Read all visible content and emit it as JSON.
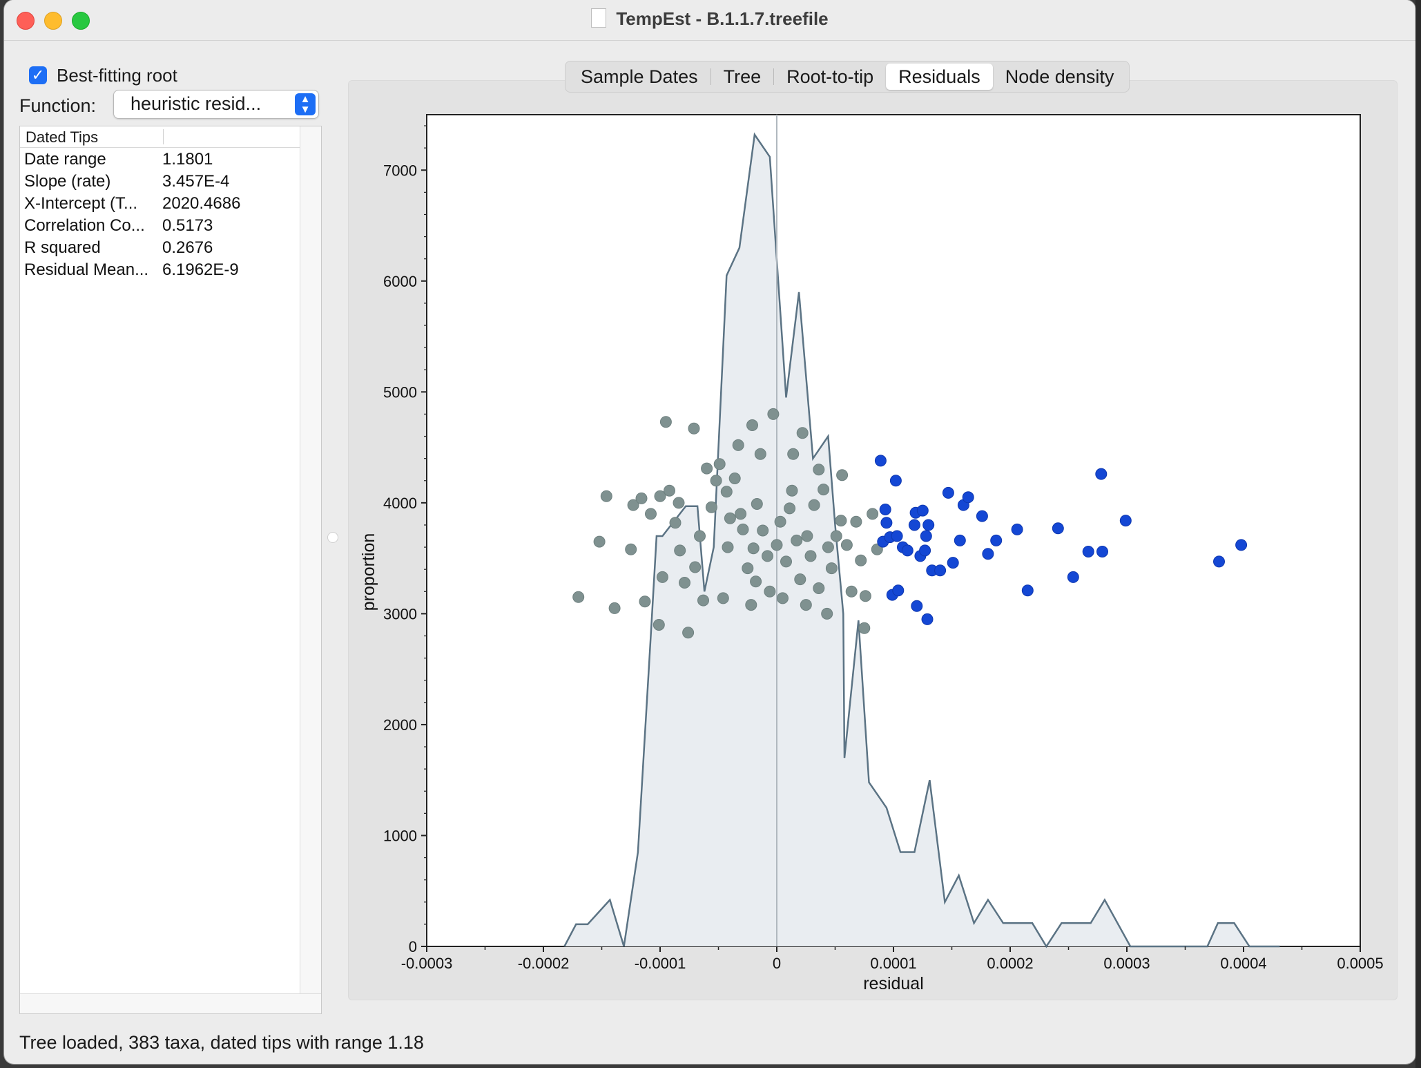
{
  "window": {
    "title": "TempEst - B.1.1.7.treefile"
  },
  "left": {
    "checkbox_label": "Best-fitting root",
    "checkbox_checked": true,
    "function_label": "Function:",
    "function_value": "heuristic resid...",
    "table": {
      "header": "Dated Tips",
      "rows": [
        {
          "key": "Date range",
          "value": "1.1801"
        },
        {
          "key": "Slope (rate)",
          "value": "3.457E-4"
        },
        {
          "key": "X-Intercept (T...",
          "value": "2020.4686"
        },
        {
          "key": "Correlation Co...",
          "value": "0.5173"
        },
        {
          "key": "R squared",
          "value": "0.2676"
        },
        {
          "key": "Residual Mean...",
          "value": "6.1962E-9"
        }
      ]
    }
  },
  "tabs": [
    {
      "label": "Sample Dates",
      "selected": false
    },
    {
      "label": "Tree",
      "selected": false
    },
    {
      "label": "Root-to-tip",
      "selected": false
    },
    {
      "label": "Residuals",
      "selected": true
    },
    {
      "label": "Node density",
      "selected": false
    }
  ],
  "status": "Tree loaded, 383 taxa, dated tips with range 1.18",
  "colors": {
    "accent": "#1d6ef5",
    "histogram_line": "#5b7384",
    "histogram_fill": "#e9edf1",
    "points_grey": "#7f9190",
    "points_blue": "#1447d4"
  },
  "chart_data": {
    "type": "area",
    "xlabel": "residual",
    "ylabel": "proportion",
    "xlim": [
      -0.0003,
      0.0005
    ],
    "ylim": [
      0,
      7500
    ],
    "x_ticks": [
      {
        "value": -0.0003,
        "label": "-0.0003"
      },
      {
        "value": -0.0002,
        "label": "-0.0002"
      },
      {
        "value": -0.0001,
        "label": "-0.0001"
      },
      {
        "value": 0,
        "label": "0"
      },
      {
        "value": 0.0001,
        "label": "0.0001"
      },
      {
        "value": 0.0002,
        "label": "0.0002"
      },
      {
        "value": 0.0003,
        "label": "0.0003"
      },
      {
        "value": 0.0004,
        "label": "0.0004"
      },
      {
        "value": 0.0005,
        "label": "0.0005"
      }
    ],
    "y_ticks": [
      {
        "value": 0,
        "label": "0"
      },
      {
        "value": 1000,
        "label": "1000"
      },
      {
        "value": 2000,
        "label": "2000"
      },
      {
        "value": 3000,
        "label": "3000"
      },
      {
        "value": 4000,
        "label": "4000"
      },
      {
        "value": 5000,
        "label": "5000"
      },
      {
        "value": 6000,
        "label": "6000"
      },
      {
        "value": 7000,
        "label": "7000"
      }
    ],
    "zero_line_x": 0,
    "histogram": [
      [
        -0.000182,
        0
      ],
      [
        -0.000172,
        200
      ],
      [
        -0.000162,
        200
      ],
      [
        -0.000143,
        420
      ],
      [
        -0.000131,
        0
      ],
      [
        -0.000119,
        850
      ],
      [
        -0.000108,
        2800
      ],
      [
        -0.000103,
        3700
      ],
      [
        -9.8e-05,
        3700
      ],
      [
        -7.8e-05,
        3970
      ],
      [
        -6.8e-05,
        3970
      ],
      [
        -6.2e-05,
        3200
      ],
      [
        -5.4e-05,
        3600
      ],
      [
        -4.3e-05,
        6050
      ],
      [
        -3.2e-05,
        6300
      ],
      [
        -1.9e-05,
        7320
      ],
      [
        -6e-06,
        7120
      ],
      [
        8e-06,
        4950
      ],
      [
        1.9e-05,
        5900
      ],
      [
        3.1e-05,
        4400
      ],
      [
        4.4e-05,
        4600
      ],
      [
        5e-05,
        3800
      ],
      [
        5.7e-05,
        3000
      ],
      [
        5.8e-05,
        1700
      ],
      [
        7e-05,
        2940
      ],
      [
        7.9e-05,
        1480
      ],
      [
        9.4e-05,
        1250
      ],
      [
        0.000106,
        850
      ],
      [
        0.000118,
        850
      ],
      [
        0.000131,
        1500
      ],
      [
        0.000144,
        400
      ],
      [
        0.000156,
        640
      ],
      [
        0.000169,
        210
      ],
      [
        0.000181,
        420
      ],
      [
        0.000194,
        210
      ],
      [
        0.000219,
        210
      ],
      [
        0.000231,
        0
      ],
      [
        0.000244,
        210
      ],
      [
        0.000269,
        210
      ],
      [
        0.000281,
        420
      ],
      [
        0.000303,
        0
      ],
      [
        0.000369,
        0
      ],
      [
        0.000378,
        210
      ],
      [
        0.000392,
        210
      ],
      [
        0.000405,
        0
      ],
      [
        0.000431,
        0
      ]
    ],
    "series": [
      {
        "name": "",
        "color": "#7f9190",
        "points": [
          [
            -0.00017,
            3150
          ],
          [
            -0.000152,
            3650
          ],
          [
            -0.000146,
            4060
          ],
          [
            -0.000139,
            3050
          ],
          [
            -0.000125,
            3580
          ],
          [
            -0.000123,
            3980
          ],
          [
            -0.000116,
            4040
          ],
          [
            -0.000108,
            3900
          ],
          [
            -0.0001,
            4060
          ],
          [
            -9.2e-05,
            4110
          ],
          [
            -9.5e-05,
            4730
          ],
          [
            -8.7e-05,
            3820
          ],
          [
            -8.3e-05,
            3570
          ],
          [
            -7.9e-05,
            3280
          ],
          [
            -7.6e-05,
            2830
          ],
          [
            -7e-05,
            3420
          ],
          [
            -6.6e-05,
            3700
          ],
          [
            -5.6e-05,
            3960
          ],
          [
            -5.2e-05,
            4200
          ],
          [
            -4.9e-05,
            4350
          ],
          [
            -4.6e-05,
            3140
          ],
          [
            -4.2e-05,
            3600
          ],
          [
            -4e-05,
            3860
          ],
          [
            -3.6e-05,
            4220
          ],
          [
            -3.3e-05,
            4520
          ],
          [
            -2.9e-05,
            3760
          ],
          [
            -2.5e-05,
            3410
          ],
          [
            -2.2e-05,
            3080
          ],
          [
            -2e-05,
            3590
          ],
          [
            -1.7e-05,
            3990
          ],
          [
            -1.4e-05,
            4440
          ],
          [
            -1.2e-05,
            3750
          ],
          [
            -8e-06,
            3520
          ],
          [
            -6e-06,
            3200
          ],
          [
            -3e-06,
            4800
          ],
          [
            0.0,
            3620
          ],
          [
            3e-06,
            3830
          ],
          [
            5e-06,
            3140
          ],
          [
            8e-06,
            3470
          ],
          [
            1.1e-05,
            3950
          ],
          [
            1.3e-05,
            4110
          ],
          [
            1.7e-05,
            3660
          ],
          [
            2e-05,
            3310
          ],
          [
            2.2e-05,
            4630
          ],
          [
            2.6e-05,
            3700
          ],
          [
            2.9e-05,
            3520
          ],
          [
            3.2e-05,
            3980
          ],
          [
            3.6e-05,
            3230
          ],
          [
            4e-05,
            4120
          ],
          [
            4.4e-05,
            3600
          ],
          [
            4.7e-05,
            3410
          ],
          [
            5.1e-05,
            3700
          ],
          [
            5.5e-05,
            3840
          ],
          [
            6e-05,
            3620
          ],
          [
            6.4e-05,
            3200
          ],
          [
            6.8e-05,
            3830
          ],
          [
            7.2e-05,
            3480
          ],
          [
            7.6e-05,
            3160
          ],
          [
            8.2e-05,
            3900
          ],
          [
            8.6e-05,
            3580
          ],
          [
            -9.8e-05,
            3330
          ],
          [
            -0.000113,
            3110
          ],
          [
            -0.000101,
            2900
          ],
          [
            -6.3e-05,
            3120
          ],
          [
            -1.8e-05,
            3290
          ],
          [
            2.5e-05,
            3080
          ],
          [
            4.3e-05,
            3000
          ],
          [
            7.5e-05,
            2870
          ],
          [
            -8.4e-05,
            4000
          ],
          [
            -6e-05,
            4310
          ],
          [
            -7.1e-05,
            4670
          ],
          [
            -2.1e-05,
            4700
          ],
          [
            1.4e-05,
            4440
          ],
          [
            -4.3e-05,
            4100
          ],
          [
            -3.1e-05,
            3900
          ],
          [
            3.6e-05,
            4300
          ],
          [
            5.6e-05,
            4250
          ]
        ]
      },
      {
        "name": "",
        "color": "#1447d4",
        "points": [
          [
            8.9e-05,
            4380
          ],
          [
            9.1e-05,
            3650
          ],
          [
            9.3e-05,
            3940
          ],
          [
            9.4e-05,
            3820
          ],
          [
            9.7e-05,
            3690
          ],
          [
            9.9e-05,
            3170
          ],
          [
            0.000102,
            4200
          ],
          [
            0.000103,
            3700
          ],
          [
            0.000104,
            3210
          ],
          [
            0.000108,
            3600
          ],
          [
            0.000112,
            3570
          ],
          [
            0.000118,
            3800
          ],
          [
            0.000119,
            3910
          ],
          [
            0.00012,
            3070
          ],
          [
            0.000123,
            3520
          ],
          [
            0.000125,
            3930
          ],
          [
            0.000127,
            3570
          ],
          [
            0.000128,
            3700
          ],
          [
            0.000129,
            2950
          ],
          [
            0.00013,
            3800
          ],
          [
            0.000133,
            3390
          ],
          [
            0.00014,
            3390
          ],
          [
            0.000147,
            4090
          ],
          [
            0.000151,
            3460
          ],
          [
            0.000157,
            3660
          ],
          [
            0.00016,
            3980
          ],
          [
            0.000164,
            4050
          ],
          [
            0.000176,
            3880
          ],
          [
            0.000181,
            3540
          ],
          [
            0.000188,
            3660
          ],
          [
            0.000206,
            3760
          ],
          [
            0.000215,
            3210
          ],
          [
            0.000241,
            3770
          ],
          [
            0.000254,
            3330
          ],
          [
            0.000267,
            3560
          ],
          [
            0.000278,
            4260
          ],
          [
            0.000279,
            3560
          ],
          [
            0.000299,
            3840
          ],
          [
            0.000379,
            3470
          ],
          [
            0.000398,
            3620
          ]
        ]
      }
    ]
  }
}
